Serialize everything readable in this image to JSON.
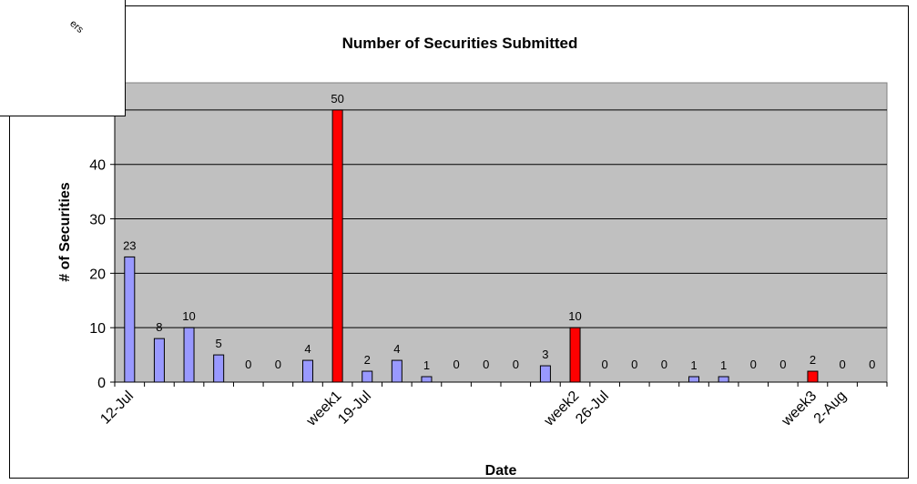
{
  "chart_data": {
    "type": "bar",
    "title": "Number of Securities Submitted",
    "xlabel": "Date",
    "ylabel": "# of Securities",
    "ylim": [
      0,
      55
    ],
    "yticks": [
      0,
      10,
      20,
      30,
      40,
      50
    ],
    "grid": "horizontal",
    "legend": "none",
    "colors": {
      "regular": "#9999ff",
      "week_marker": "#ff0000",
      "plot_bg": "#c0c0c0"
    },
    "values": [
      23,
      8,
      10,
      5,
      0,
      0,
      4,
      50,
      2,
      4,
      1,
      0,
      0,
      0,
      3,
      10,
      0,
      0,
      0,
      1,
      1,
      0,
      0,
      2,
      0,
      0
    ],
    "highlight_indices": [
      7,
      15,
      23
    ],
    "x_tick_labels": [
      {
        "slot": 0,
        "text": "12-Jul"
      },
      {
        "slot": 7,
        "text": "week1"
      },
      {
        "slot": 8,
        "text": "19-Jul"
      },
      {
        "slot": 15,
        "text": "week2"
      },
      {
        "slot": 16,
        "text": "26-Jul"
      },
      {
        "slot": 23,
        "text": "week3"
      },
      {
        "slot": 24,
        "text": "2-Aug"
      }
    ]
  },
  "overlay": {
    "text": "ers"
  }
}
